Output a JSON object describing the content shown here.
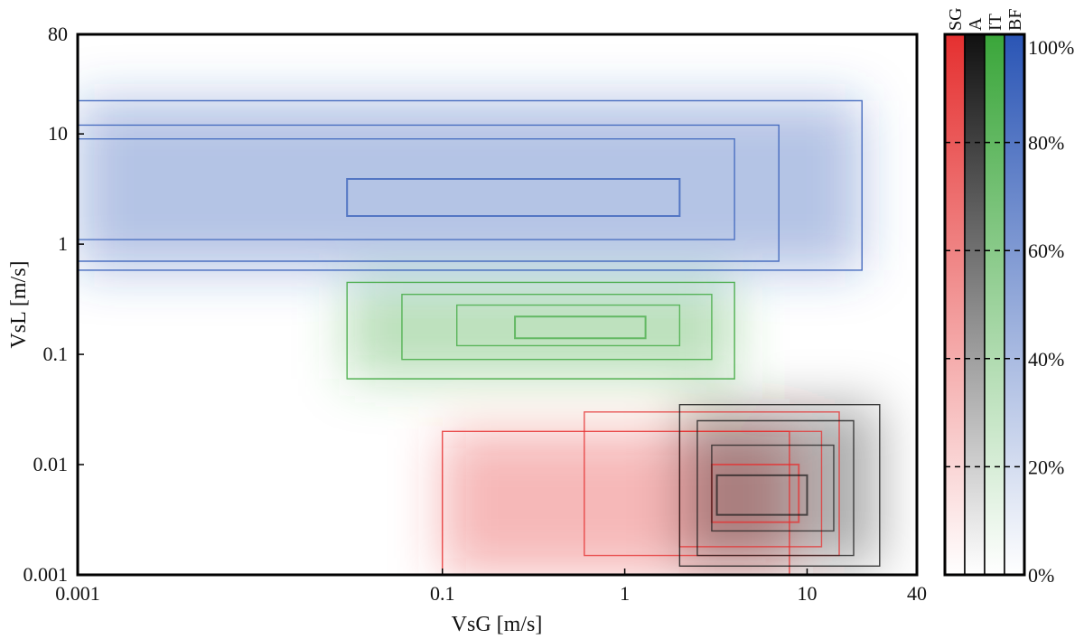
{
  "chart_data": {
    "type": "heatmap",
    "xlabel": "VsG [m/s]",
    "ylabel": "VsL [m/s]",
    "x_scale": "log",
    "y_scale": "log",
    "xlim": [
      0.001,
      40
    ],
    "ylim": [
      0.001,
      80
    ],
    "x_ticks": [
      {
        "value": 0.001,
        "label": "0.001"
      },
      {
        "value": 0.1,
        "label": "0.1"
      },
      {
        "value": 1,
        "label": "1"
      },
      {
        "value": 10,
        "label": "10"
      },
      {
        "value": 40,
        "label": "40"
      }
    ],
    "y_ticks": [
      {
        "value": 0.001,
        "label": "0.001"
      },
      {
        "value": 0.01,
        "label": "0.01"
      },
      {
        "value": 0.1,
        "label": "0.1"
      },
      {
        "value": 1,
        "label": "1"
      },
      {
        "value": 10,
        "label": "10"
      },
      {
        "value": 80,
        "label": "80"
      }
    ],
    "series": [
      {
        "name": "BF",
        "color": "#2a55b5",
        "contours": [
          [
            [
              0.001,
              0.58
            ],
            [
              0.001,
              20
            ],
            [
              20,
              20
            ],
            [
              20,
              0.58
            ]
          ],
          [
            [
              0.001,
              0.7
            ],
            [
              0.001,
              12
            ],
            [
              7,
              12
            ],
            [
              7,
              0.7
            ]
          ],
          [
            [
              0.001,
              1.1
            ],
            [
              0.001,
              9
            ],
            [
              4,
              9
            ],
            [
              4,
              1.1
            ]
          ],
          [
            [
              0.03,
              1.8
            ],
            [
              0.03,
              3.9
            ],
            [
              2,
              3.9
            ],
            [
              2,
              1.8
            ]
          ]
        ]
      },
      {
        "name": "IT",
        "color": "#3aa63a",
        "contours": [
          [
            [
              0.03,
              0.06
            ],
            [
              0.03,
              0.45
            ],
            [
              4,
              0.45
            ],
            [
              4,
              0.06
            ]
          ],
          [
            [
              0.06,
              0.09
            ],
            [
              0.06,
              0.35
            ],
            [
              3,
              0.35
            ],
            [
              3,
              0.09
            ]
          ],
          [
            [
              0.12,
              0.12
            ],
            [
              0.12,
              0.28
            ],
            [
              2,
              0.28
            ],
            [
              2,
              0.12
            ]
          ],
          [
            [
              0.25,
              0.14
            ],
            [
              0.25,
              0.22
            ],
            [
              1.3,
              0.22
            ],
            [
              1.3,
              0.14
            ]
          ]
        ]
      },
      {
        "name": "SG",
        "color": "#e53030",
        "contours": [
          [
            [
              0.1,
              0.001
            ],
            [
              0.1,
              0.02
            ],
            [
              8,
              0.02
            ],
            [
              8,
              0.001
            ]
          ],
          [
            [
              0.6,
              0.0015
            ],
            [
              0.6,
              0.03
            ],
            [
              15,
              0.03
            ],
            [
              15,
              0.0015
            ]
          ],
          [
            [
              2,
              0.0018
            ],
            [
              2,
              0.02
            ],
            [
              12,
              0.02
            ],
            [
              12,
              0.0018
            ]
          ],
          [
            [
              3,
              0.003
            ],
            [
              3,
              0.01
            ],
            [
              9,
              0.01
            ],
            [
              9,
              0.003
            ]
          ]
        ]
      },
      {
        "name": "A",
        "color": "#1a1a1a",
        "contours": [
          [
            [
              2,
              0.0012
            ],
            [
              2,
              0.035
            ],
            [
              25,
              0.035
            ],
            [
              25,
              0.0012
            ]
          ],
          [
            [
              2.5,
              0.0015
            ],
            [
              2.5,
              0.025
            ],
            [
              18,
              0.025
            ],
            [
              18,
              0.0015
            ]
          ],
          [
            [
              3,
              0.0025
            ],
            [
              3,
              0.015
            ],
            [
              14,
              0.015
            ],
            [
              14,
              0.0025
            ]
          ],
          [
            [
              3.2,
              0.0035
            ],
            [
              3.2,
              0.008
            ],
            [
              10,
              0.008
            ],
            [
              10,
              0.0035
            ]
          ]
        ]
      }
    ],
    "colorbar": {
      "columns": [
        {
          "label": "SG",
          "color": "#e53030"
        },
        {
          "label": "A",
          "color": "#111111"
        },
        {
          "label": "IT",
          "color": "#3aa63a"
        },
        {
          "label": "BF",
          "color": "#2a55b5"
        }
      ],
      "range": [
        0,
        100
      ],
      "ticks": [
        {
          "value": 0,
          "label": "0%"
        },
        {
          "value": 20,
          "label": "20%"
        },
        {
          "value": 40,
          "label": "40%"
        },
        {
          "value": 60,
          "label": "60%"
        },
        {
          "value": 80,
          "label": "80%"
        },
        {
          "value": 100,
          "label": "100%"
        }
      ]
    }
  }
}
